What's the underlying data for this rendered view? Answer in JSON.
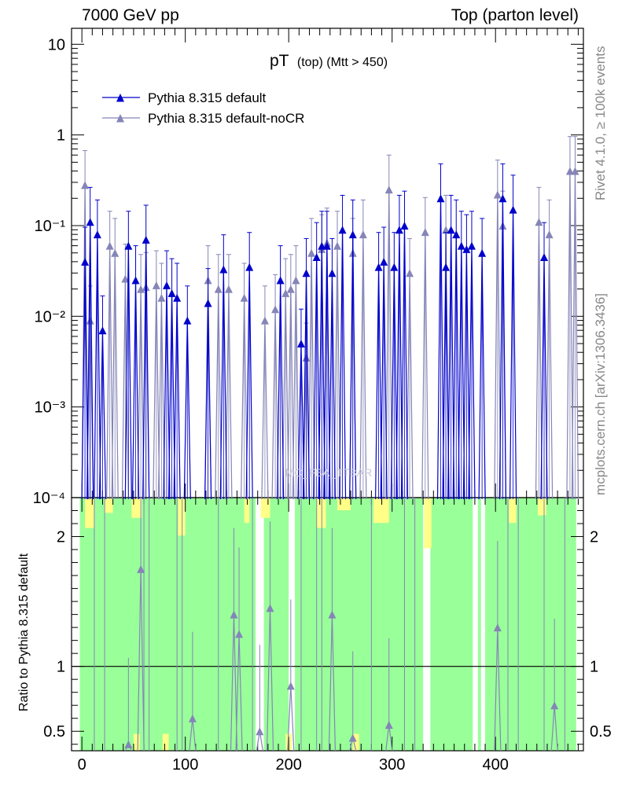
{
  "header": {
    "left": "7000 GeV pp",
    "right": "Top (parton level)"
  },
  "side": {
    "rivet": "Rivet 4.1.0, ≥ 100k events",
    "mcplots": "mcplots.cern.ch [arXiv:1306.3436]"
  },
  "chart_data": {
    "type": "line",
    "title": "pT (top) (Mtt > 450)",
    "title_main": "pT",
    "title_sub": "(top) (Mtt > 450)",
    "watermark": "MC_FBA_TTBAR",
    "xlabel": "",
    "ylabel": "",
    "xlim": [
      -10,
      485
    ],
    "ylim": [
      0.0001,
      15
    ],
    "yscale": "log",
    "x_ticks": [
      "0",
      "100",
      "200",
      "300",
      "400"
    ],
    "y_ticks": [
      "10",
      "1",
      "10⁻¹",
      "10⁻²",
      "10⁻³",
      "10⁻⁴"
    ],
    "legend": [
      "Pythia 8.315 default",
      "Pythia 8.315 default-noCR"
    ],
    "colors": {
      "default": "#0000cc",
      "nocr": "#8585b8",
      "band_yellow": "#ffff88",
      "band_green": "#99ff99"
    },
    "series": [
      {
        "name": "Pythia 8.315 default",
        "x": [
          3,
          8,
          15,
          20,
          45,
          52,
          62,
          82,
          87,
          92,
          102,
          122,
          137,
          162,
          192,
          212,
          217,
          227,
          232,
          237,
          242,
          252,
          262,
          287,
          292,
          302,
          307,
          312,
          347,
          352,
          357,
          362,
          367,
          372,
          377,
          387,
          407,
          417,
          447
        ],
        "values": [
          0.04,
          0.11,
          0.08,
          0.007,
          0.06,
          0.025,
          0.07,
          0.022,
          0.018,
          0.016,
          0.009,
          0.014,
          0.033,
          0.035,
          0.025,
          0.005,
          0.03,
          0.045,
          0.06,
          0.06,
          0.03,
          0.09,
          0.08,
          0.035,
          0.04,
          0.035,
          0.09,
          0.1,
          0.2,
          0.035,
          0.09,
          0.08,
          0.06,
          0.055,
          0.06,
          0.05,
          0.2,
          0.15,
          0.045
        ]
      },
      {
        "name": "Pythia 8.315 default-noCR",
        "x": [
          3,
          8,
          27,
          32,
          42,
          57,
          62,
          72,
          77,
          122,
          132,
          142,
          157,
          177,
          187,
          197,
          202,
          207,
          217,
          222,
          232,
          237,
          247,
          262,
          272,
          297,
          317,
          332,
          352,
          402,
          407,
          442,
          452,
          472,
          477
        ],
        "values": [
          0.28,
          0.009,
          0.06,
          0.05,
          0.026,
          0.02,
          0.021,
          0.022,
          0.016,
          0.025,
          0.02,
          0.02,
          0.016,
          0.009,
          0.012,
          0.018,
          0.02,
          0.025,
          0.0035,
          0.05,
          0.055,
          0.065,
          0.06,
          0.05,
          0.08,
          0.25,
          0.03,
          0.085,
          0.09,
          0.22,
          0.1,
          0.11,
          0.08,
          0.4,
          0.4
        ]
      }
    ],
    "ratio": {
      "ylabel": "Ratio to Pythia 8.315 default",
      "ylim": [
        0.35,
        2.3
      ],
      "y_ticks": [
        "0.5",
        "1",
        "2"
      ],
      "series": [
        {
          "name": "Pythia 8.315 default-noCR / default",
          "x": [
            45,
            57,
            107,
            147,
            152,
            172,
            182,
            202,
            242,
            262,
            297,
            402,
            457
          ],
          "values": [
            0.4,
            1.75,
            0.6,
            1.4,
            1.25,
            0.5,
            1.45,
            0.85,
            1.4,
            0.45,
            0.55,
            1.3,
            0.7
          ]
        }
      ]
    }
  }
}
